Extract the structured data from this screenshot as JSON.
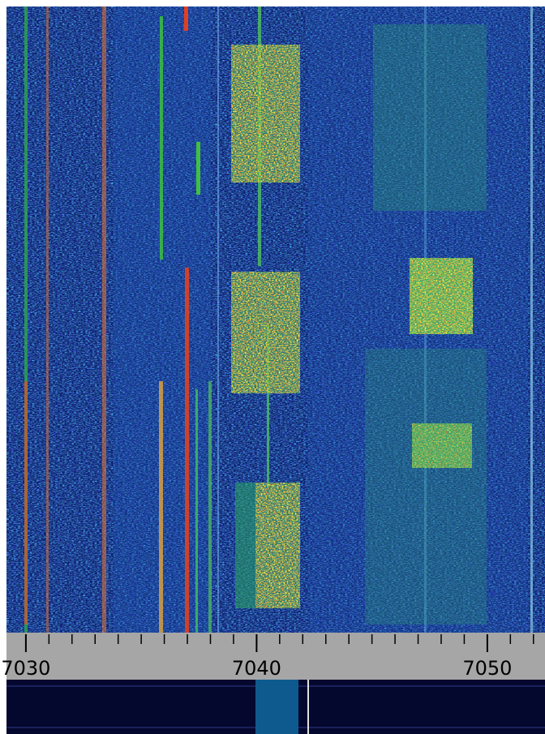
{
  "frequency_axis": {
    "xlim": [
      7029.16,
      7052.5
    ],
    "ticks": [
      7030,
      7040,
      7050
    ]
  }
}
